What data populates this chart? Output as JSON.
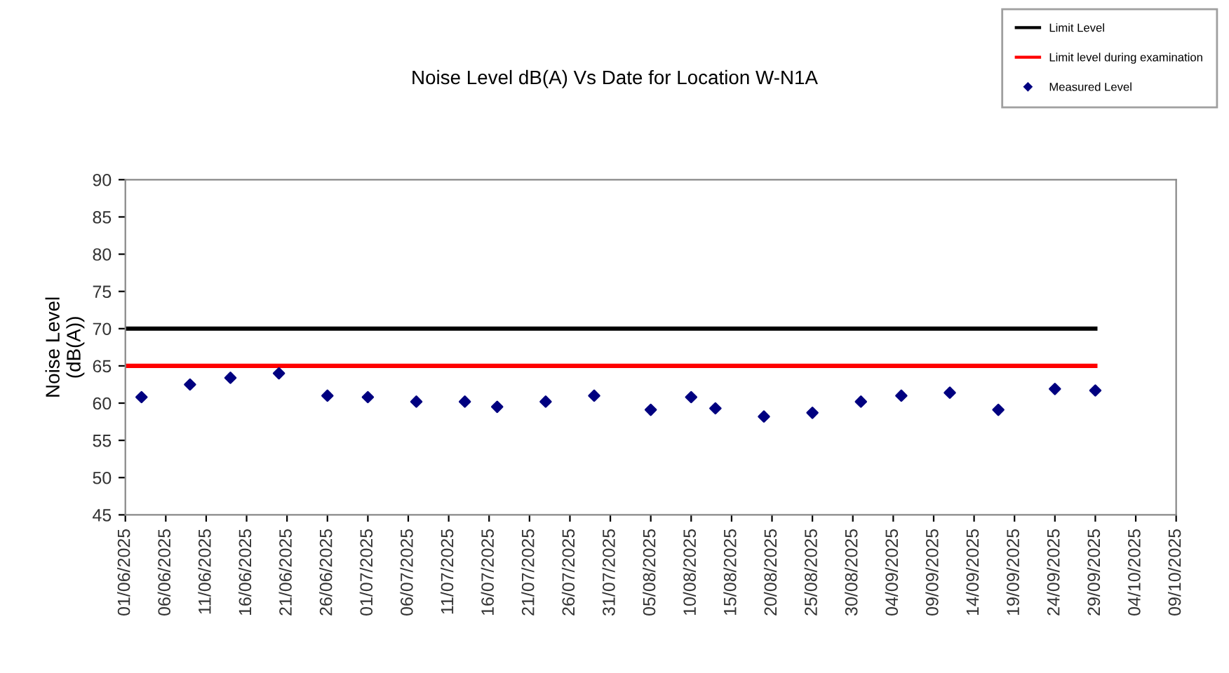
{
  "chart_data": {
    "type": "scatter",
    "title": "Noise Level dB(A) Vs Date for Location W-N1A",
    "ylabel": "Noise Level\n(dB(A))",
    "series": [
      {
        "name": "Limit Level",
        "type": "line",
        "color": "#000000",
        "x": [
          "2025-06-01",
          "2025-09-29"
        ],
        "values": [
          70,
          70
        ]
      },
      {
        "name": "Limit level during examination",
        "type": "line",
        "color": "#ff0000",
        "x": [
          "2025-06-01",
          "2025-09-29"
        ],
        "values": [
          65,
          65
        ]
      },
      {
        "name": "Measured Level",
        "color": "#000080",
        "marker": "diamond",
        "x": [
          "2025-06-03",
          "2025-06-09",
          "2025-06-14",
          "2025-06-20",
          "2025-06-26",
          "2025-07-01",
          "2025-07-07",
          "2025-07-13",
          "2025-07-17",
          "2025-07-23",
          "2025-07-29",
          "2025-08-05",
          "2025-08-10",
          "2025-08-13",
          "2025-08-19",
          "2025-08-25",
          "2025-08-31",
          "2025-09-05",
          "2025-09-11",
          "2025-09-17",
          "2025-09-24",
          "2025-09-29"
        ],
        "values": [
          60.8,
          62.5,
          63.4,
          64.0,
          61.0,
          60.8,
          60.2,
          60.2,
          59.5,
          60.2,
          61.0,
          59.1,
          60.8,
          59.3,
          58.2,
          58.7,
          60.2,
          61.0,
          61.4,
          59.1,
          61.9,
          61.7
        ]
      }
    ],
    "xlim": [
      "2025-06-01",
      "2025-10-09"
    ],
    "xticks": [
      {
        "value": "2025-06-01",
        "label": "01/06/2025"
      },
      {
        "value": "2025-06-06",
        "label": "06/06/2025"
      },
      {
        "value": "2025-06-11",
        "label": "11/06/2025"
      },
      {
        "value": "2025-06-16",
        "label": "16/06/2025"
      },
      {
        "value": "2025-06-21",
        "label": "21/06/2025"
      },
      {
        "value": "2025-06-26",
        "label": "26/06/2025"
      },
      {
        "value": "2025-07-01",
        "label": "01/07/2025"
      },
      {
        "value": "2025-07-06",
        "label": "06/07/2025"
      },
      {
        "value": "2025-07-11",
        "label": "11/07/2025"
      },
      {
        "value": "2025-07-16",
        "label": "16/07/2025"
      },
      {
        "value": "2025-07-21",
        "label": "21/07/2025"
      },
      {
        "value": "2025-07-26",
        "label": "26/07/2025"
      },
      {
        "value": "2025-07-31",
        "label": "31/07/2025"
      },
      {
        "value": "2025-08-05",
        "label": "05/08/2025"
      },
      {
        "value": "2025-08-10",
        "label": "10/08/2025"
      },
      {
        "value": "2025-08-15",
        "label": "15/08/2025"
      },
      {
        "value": "2025-08-20",
        "label": "20/08/2025"
      },
      {
        "value": "2025-08-25",
        "label": "25/08/2025"
      },
      {
        "value": "2025-08-30",
        "label": "30/08/2025"
      },
      {
        "value": "2025-09-04",
        "label": "04/09/2025"
      },
      {
        "value": "2025-09-09",
        "label": "09/09/2025"
      },
      {
        "value": "2025-09-14",
        "label": "14/09/2025"
      },
      {
        "value": "2025-09-19",
        "label": "19/09/2025"
      },
      {
        "value": "2025-09-24",
        "label": "24/09/2025"
      },
      {
        "value": "2025-09-29",
        "label": "29/09/2025"
      },
      {
        "value": "2025-10-04",
        "label": "04/10/2025"
      },
      {
        "value": "2025-10-09",
        "label": "09/10/2025"
      }
    ],
    "ylim": [
      45,
      90
    ],
    "yticks": [
      45,
      50,
      55,
      60,
      65,
      70,
      75,
      80,
      85,
      90
    ],
    "grid": false,
    "legend": "top right"
  }
}
